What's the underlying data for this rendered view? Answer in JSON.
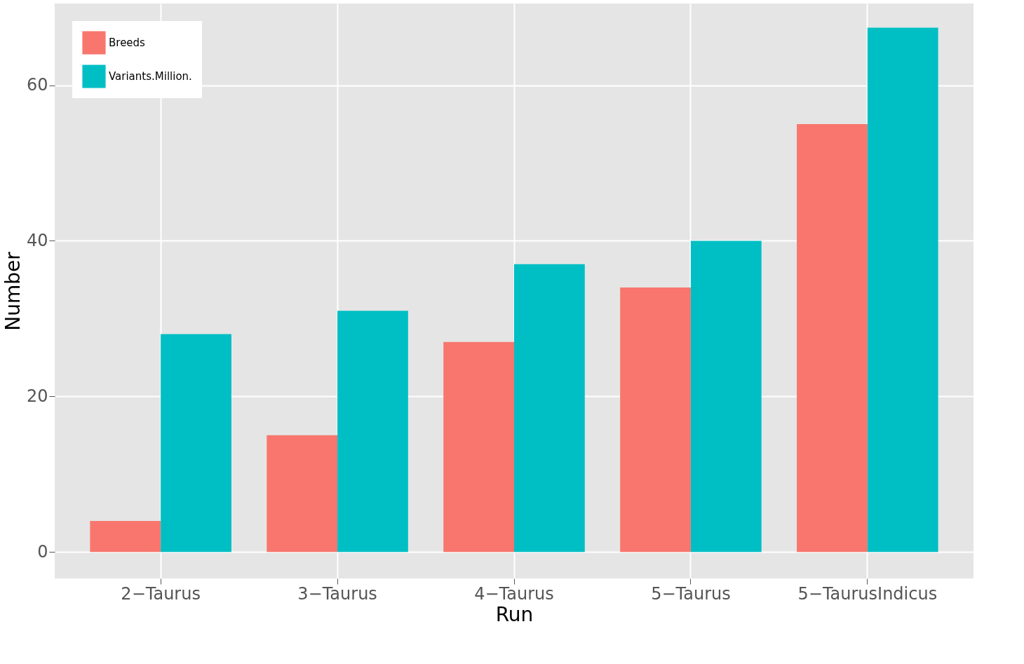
{
  "chart_data": {
    "type": "bar",
    "xlabel": "Run",
    "ylabel": "Number",
    "categories": [
      "2−Taurus",
      "3−Taurus",
      "4−Taurus",
      "5−Taurus",
      "5−TaurusIndicus"
    ],
    "series": [
      {
        "name": "Breeds",
        "color": "#f8766d",
        "values": [
          4,
          15,
          27,
          34,
          55
        ]
      },
      {
        "name": "Variants.Million.",
        "color": "#00bfc4",
        "values": [
          28,
          31,
          37,
          40,
          67.4
        ]
      }
    ],
    "ylim": [
      -3.4,
      70.5
    ],
    "yticks": [
      0,
      20,
      40,
      60
    ],
    "grid": true,
    "legend": "top left"
  }
}
